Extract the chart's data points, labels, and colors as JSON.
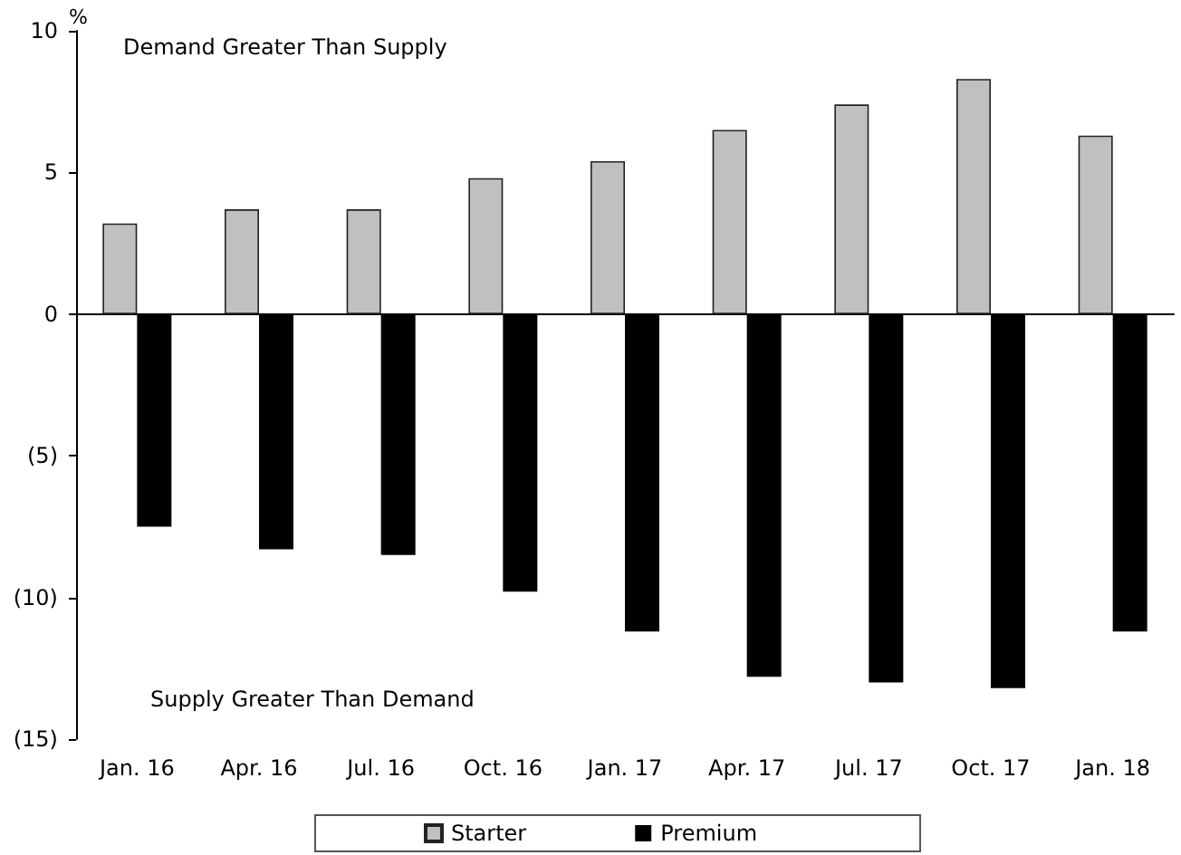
{
  "chart_data": {
    "type": "bar",
    "ylabel": "%",
    "annotations": [
      "Demand Greater Than Supply",
      "Supply Greater Than Demand"
    ],
    "categories": [
      "Jan. 16",
      "Apr. 16",
      "Jul. 16",
      "Oct. 16",
      "Jan. 17",
      "Apr. 17",
      "Jul. 17",
      "Oct. 17",
      "Jan. 18"
    ],
    "series": [
      {
        "name": "Starter",
        "color": "#c0c0c0",
        "values": [
          3.2,
          3.7,
          3.7,
          4.8,
          5.4,
          6.5,
          7.4,
          8.3,
          6.3
        ]
      },
      {
        "name": "Premium",
        "color": "#000000",
        "values": [
          -7.5,
          -8.3,
          -8.5,
          -9.8,
          -11.2,
          -12.8,
          -13.0,
          -13.2,
          -11.2
        ]
      }
    ],
    "ylim": [
      -15,
      10
    ],
    "yticks": [
      {
        "value": -15,
        "label": "(15)"
      },
      {
        "value": -10,
        "label": "(10)"
      },
      {
        "value": -5,
        "label": "(5)"
      },
      0,
      5,
      10
    ],
    "legend": "bottom"
  }
}
